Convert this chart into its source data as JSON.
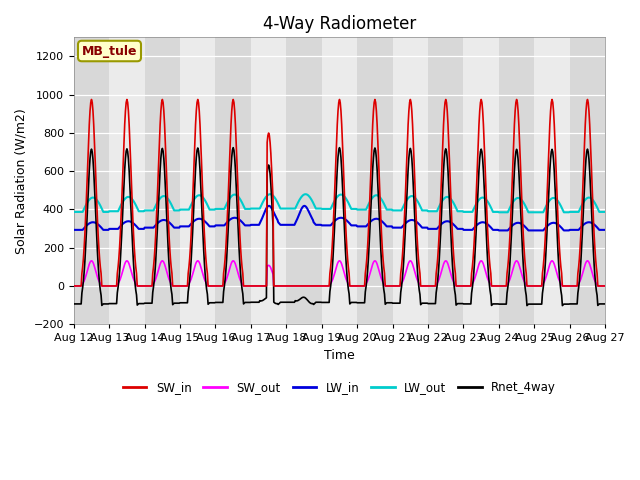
{
  "title": "4-Way Radiometer",
  "xlabel": "Time",
  "ylabel": "Solar Radiation (W/m2)",
  "ylim": [
    -200,
    1300
  ],
  "yticks": [
    -200,
    0,
    200,
    400,
    600,
    800,
    1000,
    1200
  ],
  "station_label": "MB_tule",
  "series": {
    "SW_in": {
      "color": "#dd0000",
      "lw": 1.2
    },
    "SW_out": {
      "color": "#ff00ff",
      "lw": 1.2
    },
    "LW_in": {
      "color": "#0000dd",
      "lw": 1.5
    },
    "LW_out": {
      "color": "#00cccc",
      "lw": 1.5
    },
    "Rnet_4way": {
      "color": "#000000",
      "lw": 1.2
    }
  },
  "n_days": 15,
  "hours_per_day": 24,
  "dt_hours": 0.5,
  "sw_peak": 975,
  "lw_in_base": 305,
  "lw_in_amp": 40,
  "lw_out_base": 395,
  "lw_out_amp": 75,
  "anomaly_day": 5,
  "anomaly_day2": 6,
  "title_fontsize": 12,
  "label_fontsize": 9,
  "tick_fontsize": 8,
  "fig_width": 6.4,
  "fig_height": 4.8,
  "dpi": 100
}
